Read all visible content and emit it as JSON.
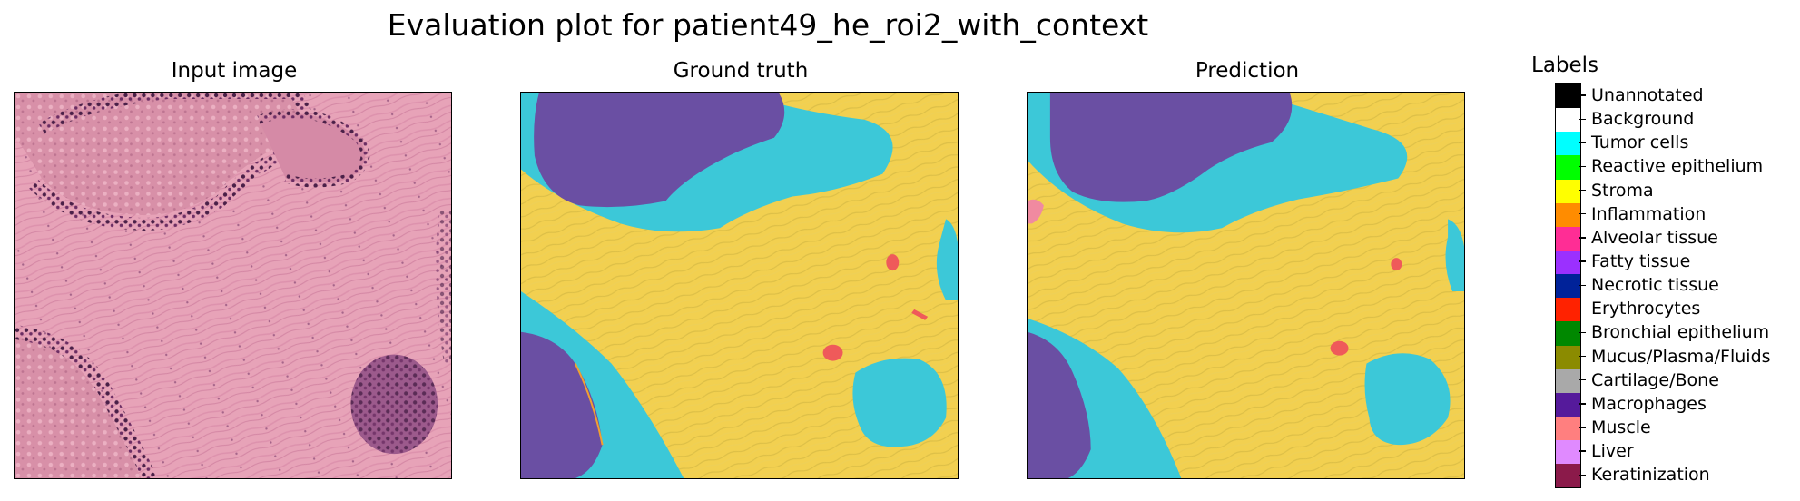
{
  "figure": {
    "title": "Evaluation plot for patient49_he_roi2_with_context"
  },
  "panels": [
    {
      "title": "Input image"
    },
    {
      "title": "Ground truth"
    },
    {
      "title": "Prediction"
    }
  ],
  "legend": {
    "title": "Labels",
    "items": [
      {
        "label": "Unannotated",
        "color": "#000000"
      },
      {
        "label": "Background",
        "color": "#ffffff"
      },
      {
        "label": "Tumor cells",
        "color": "#00ffff"
      },
      {
        "label": "Reactive epithelium",
        "color": "#00ff00"
      },
      {
        "label": "Stroma",
        "color": "#ffff00"
      },
      {
        "label": "Inflammation",
        "color": "#ff8c00"
      },
      {
        "label": "Alveolar tissue",
        "color": "#ff2d95"
      },
      {
        "label": "Fatty tissue",
        "color": "#9b30ff"
      },
      {
        "label": "Necrotic tissue",
        "color": "#002299"
      },
      {
        "label": "Erythrocytes",
        "color": "#ff2200"
      },
      {
        "label": "Bronchial epithelium",
        "color": "#008800"
      },
      {
        "label": "Mucus/Plasma/Fluids",
        "color": "#8b8b00"
      },
      {
        "label": "Cartilage/Bone",
        "color": "#a9a9a9"
      },
      {
        "label": "Macrophages",
        "color": "#551a9b"
      },
      {
        "label": "Muscle",
        "color": "#ff7f7f"
      },
      {
        "label": "Liver",
        "color": "#e08aff"
      },
      {
        "label": "Keratinization",
        "color": "#8b1a4a"
      }
    ]
  },
  "chart_data": {
    "type": "heatmap",
    "title": "Evaluation plot for patient49_he_roi2_with_context",
    "panels": [
      "Input image",
      "Ground truth",
      "Prediction"
    ],
    "categories": [
      "Unannotated",
      "Background",
      "Tumor cells",
      "Reactive epithelium",
      "Stroma",
      "Inflammation",
      "Alveolar tissue",
      "Fatty tissue",
      "Necrotic tissue",
      "Erythrocytes",
      "Bronchial epithelium",
      "Mucus/Plasma/Fluids",
      "Cartilage/Bone",
      "Macrophages",
      "Muscle",
      "Liver",
      "Keratinization"
    ],
    "legend_position": "right"
  }
}
